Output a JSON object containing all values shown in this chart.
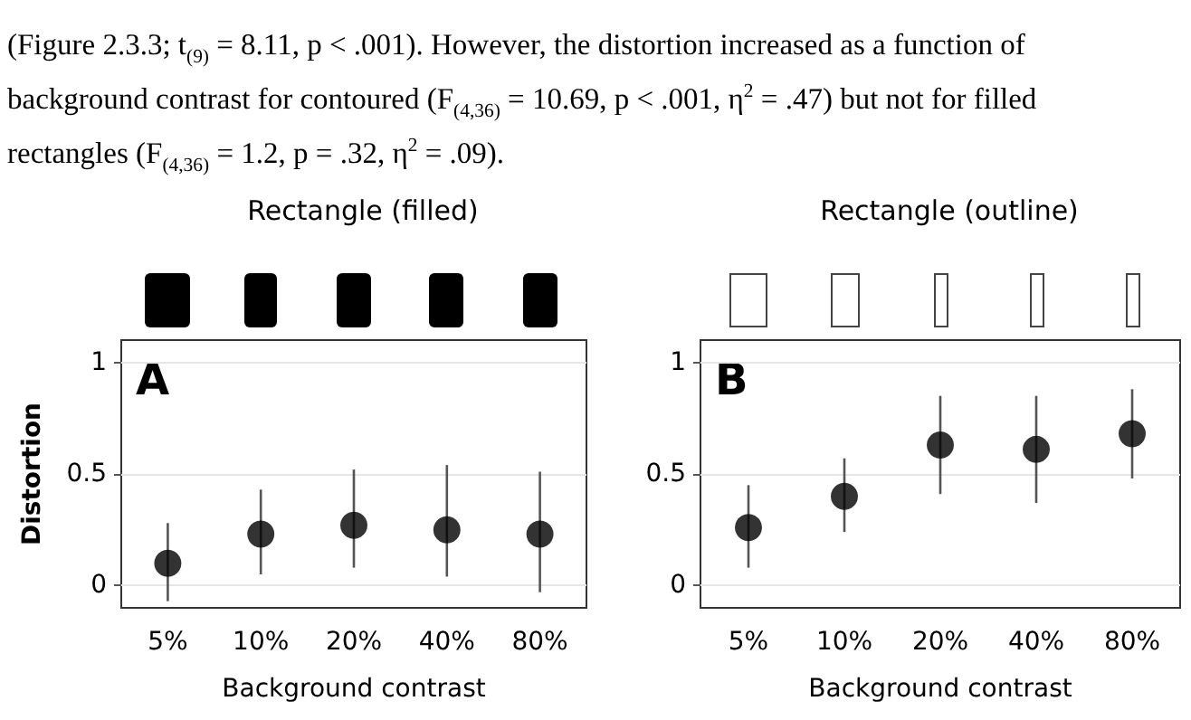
{
  "chart_data": [
    {
      "type": "scatter",
      "title": "Rectangle (filled)",
      "xlabel": "Background contrast",
      "ylabel": "Distortion",
      "annotations": [
        "(Figure 2.3.3; t$_{(9)}$ = 8.11, p < .001). However, the distortion increased as a function of",
        "background contrast for contoured (F$_{(4,36)}$ = 10.69, p < .001, η$^{2}$ = .47) but not for filled",
        "rectangles (F$_{(4,36)}$ = 1.2, p = .32, η$^{2}$ = .09).",
        "A"
      ],
      "categories": [
        "5%",
        "10%",
        "20%",
        "40%",
        "80%"
      ],
      "series": [
        {
          "color": "#000000",
          "values": [
            0.1,
            0.23,
            0.27,
            0.25,
            0.23
          ],
          "errors": [
            [
              -0.07,
              0.28
            ],
            [
              0.05,
              0.43
            ],
            [
              0.08,
              0.52
            ],
            [
              0.04,
              0.54
            ],
            [
              -0.03,
              0.51
            ]
          ]
        }
      ],
      "ylim": [
        -0.1,
        1.1
      ],
      "yticks": [
        0,
        0.5,
        1
      ],
      "grid": "y",
      "marker": "circle"
    },
    {
      "type": "scatter",
      "title": "Rectangle (outline)",
      "xlabel": "Background contrast",
      "annotations": [
        "B"
      ],
      "categories": [
        "5%",
        "10%",
        "20%",
        "40%",
        "80%"
      ],
      "series": [
        {
          "color": "#000000",
          "values": [
            0.26,
            0.4,
            0.63,
            0.61,
            0.68
          ],
          "errors": [
            [
              0.08,
              0.45
            ],
            [
              0.24,
              0.57
            ],
            [
              0.41,
              0.85
            ],
            [
              0.37,
              0.85
            ],
            [
              0.48,
              0.88
            ]
          ]
        }
      ],
      "ylim": [
        -0.1,
        1.1
      ],
      "yticks": [
        0,
        0.5,
        1
      ],
      "grid": "y",
      "marker": "circle"
    }
  ]
}
